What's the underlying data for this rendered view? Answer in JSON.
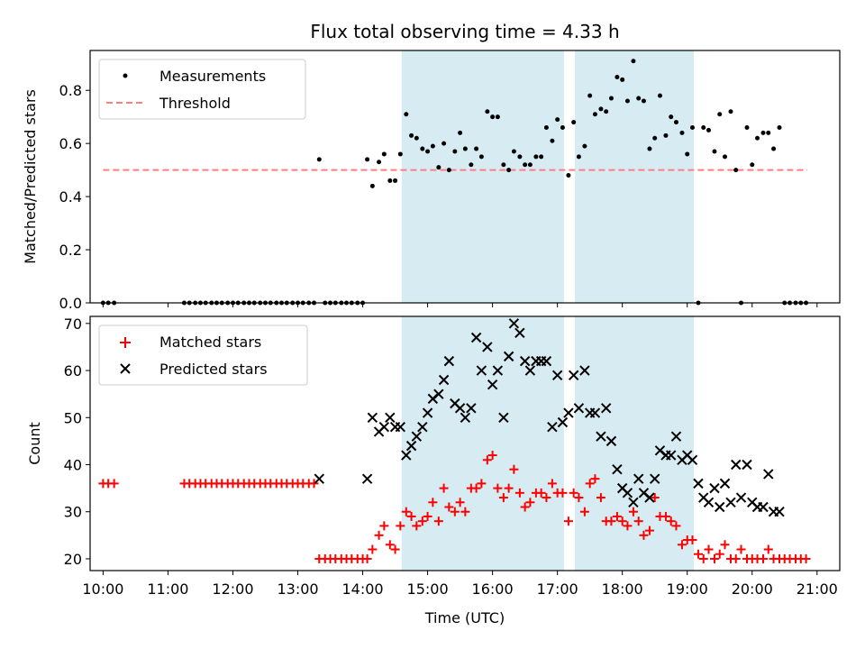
{
  "chart_data": [
    {
      "type": "scatter",
      "title": "Flux total observing time = 4.33 h",
      "xlabel": "",
      "ylabel": "Matched/Predicted stars",
      "xlim": [
        9.8,
        21.35
      ],
      "ylim": [
        0,
        0.95
      ],
      "yticks": [
        0.0,
        0.2,
        0.4,
        0.6,
        0.8
      ],
      "ytick_labels": [
        "0.0",
        "0.2",
        "0.4",
        "0.6",
        "0.8"
      ],
      "legend_position": "top-left",
      "shaded_spans": [
        [
          14.6,
          17.1
        ],
        [
          17.27,
          19.1
        ]
      ],
      "shade_color": "#add8e6",
      "series": [
        {
          "name": "Measurements",
          "marker": "dot",
          "color": "#000000",
          "x": [
            10.0,
            10.08,
            10.17,
            11.25,
            11.33,
            11.42,
            11.5,
            11.58,
            11.67,
            11.75,
            11.83,
            11.92,
            12.0,
            12.08,
            12.17,
            12.25,
            12.33,
            12.42,
            12.5,
            12.58,
            12.67,
            12.75,
            12.83,
            12.92,
            13.0,
            13.08,
            13.17,
            13.25,
            13.33,
            13.42,
            13.5,
            13.58,
            13.67,
            13.75,
            13.83,
            13.92,
            14.0,
            14.07,
            14.15,
            14.25,
            14.33,
            14.42,
            14.5,
            14.58,
            14.67,
            14.75,
            14.83,
            14.92,
            15.0,
            15.08,
            15.17,
            15.25,
            15.33,
            15.42,
            15.5,
            15.58,
            15.67,
            15.75,
            15.83,
            15.92,
            16.0,
            16.08,
            16.17,
            16.25,
            16.33,
            16.42,
            16.5,
            16.58,
            16.67,
            16.75,
            16.83,
            16.92,
            17.0,
            17.08,
            17.17,
            17.25,
            17.33,
            17.42,
            17.5,
            17.58,
            17.67,
            17.75,
            17.83,
            17.92,
            18.0,
            18.08,
            18.17,
            18.25,
            18.33,
            18.42,
            18.5,
            18.58,
            18.67,
            18.75,
            18.83,
            18.92,
            19.0,
            19.08,
            19.17,
            19.25,
            19.33,
            19.42,
            19.5,
            19.58,
            19.67,
            19.75,
            19.83,
            19.92,
            20.0,
            20.08,
            20.17,
            20.25,
            20.33,
            20.42,
            20.5,
            20.58,
            20.67,
            20.75,
            20.83
          ],
          "y": [
            0.0,
            0.0,
            0.0,
            0.0,
            0.0,
            0.0,
            0.0,
            0.0,
            0.0,
            0.0,
            0.0,
            0.0,
            0.0,
            0.0,
            0.0,
            0.0,
            0.0,
            0.0,
            0.0,
            0.0,
            0.0,
            0.0,
            0.0,
            0.0,
            0.0,
            0.0,
            0.0,
            0.0,
            0.54,
            0.0,
            0.0,
            0.0,
            0.0,
            0.0,
            0.0,
            0.0,
            0.0,
            0.54,
            0.44,
            0.53,
            0.56,
            0.46,
            0.46,
            0.56,
            0.71,
            0.63,
            0.62,
            0.58,
            0.57,
            0.59,
            0.51,
            0.6,
            0.5,
            0.57,
            0.64,
            0.58,
            0.52,
            0.58,
            0.55,
            0.72,
            0.7,
            0.7,
            0.52,
            0.5,
            0.57,
            0.55,
            0.52,
            0.52,
            0.55,
            0.55,
            0.66,
            0.61,
            0.69,
            0.66,
            0.48,
            0.68,
            0.55,
            0.59,
            0.78,
            0.71,
            0.73,
            0.72,
            0.77,
            0.85,
            0.84,
            0.76,
            0.91,
            0.77,
            0.76,
            0.58,
            0.62,
            0.78,
            0.63,
            0.7,
            0.68,
            0.64,
            0.56,
            0.66,
            0.0,
            0.66,
            0.65,
            0.57,
            0.71,
            0.55,
            0.72,
            0.5,
            0.0,
            0.66,
            0.52,
            0.62,
            0.64,
            0.64,
            0.58,
            0.66,
            0.0,
            0.0,
            0.0,
            0.0,
            0.0
          ]
        },
        {
          "name": "Threshold",
          "marker": "dashed-line",
          "color": "#ff7f7f",
          "x": [
            10.0,
            20.85
          ],
          "y": [
            0.5,
            0.5
          ]
        }
      ]
    },
    {
      "type": "scatter",
      "title": "",
      "xlabel": "Time (UTC)",
      "ylabel": "Count",
      "xlim": [
        9.8,
        21.35
      ],
      "ylim": [
        17.5,
        71.5
      ],
      "yticks": [
        20,
        30,
        40,
        50,
        60,
        70
      ],
      "ytick_labels": [
        "20",
        "30",
        "40",
        "50",
        "60",
        "70"
      ],
      "xticks": [
        10,
        11,
        12,
        13,
        14,
        15,
        16,
        17,
        18,
        19,
        20,
        21
      ],
      "xtick_labels": [
        "10:00",
        "11:00",
        "12:00",
        "13:00",
        "14:00",
        "15:00",
        "16:00",
        "17:00",
        "18:00",
        "19:00",
        "20:00",
        "21:00"
      ],
      "legend_position": "top-left",
      "shaded_spans": [
        [
          14.6,
          17.1
        ],
        [
          17.27,
          19.1
        ]
      ],
      "shade_color": "#add8e6",
      "series": [
        {
          "name": "Matched stars",
          "marker": "plus",
          "color": "#ff0000",
          "x": [
            10.0,
            10.08,
            10.17,
            11.25,
            11.33,
            11.42,
            11.5,
            11.58,
            11.67,
            11.75,
            11.83,
            11.92,
            12.0,
            12.08,
            12.17,
            12.25,
            12.33,
            12.42,
            12.5,
            12.58,
            12.67,
            12.75,
            12.83,
            12.92,
            13.0,
            13.08,
            13.17,
            13.25,
            13.33,
            13.42,
            13.5,
            13.58,
            13.67,
            13.75,
            13.83,
            13.92,
            14.0,
            14.07,
            14.15,
            14.25,
            14.33,
            14.42,
            14.5,
            14.58,
            14.67,
            14.75,
            14.83,
            14.92,
            15.0,
            15.08,
            15.17,
            15.25,
            15.33,
            15.42,
            15.5,
            15.58,
            15.67,
            15.75,
            15.83,
            15.92,
            16.0,
            16.08,
            16.17,
            16.25,
            16.33,
            16.42,
            16.5,
            16.58,
            16.67,
            16.75,
            16.83,
            16.92,
            17.0,
            17.08,
            17.17,
            17.25,
            17.33,
            17.42,
            17.5,
            17.58,
            17.67,
            17.75,
            17.83,
            17.92,
            18.0,
            18.08,
            18.17,
            18.25,
            18.33,
            18.42,
            18.5,
            18.58,
            18.67,
            18.75,
            18.83,
            18.92,
            19.0,
            19.08,
            19.17,
            19.25,
            19.33,
            19.42,
            19.5,
            19.58,
            19.67,
            19.75,
            19.83,
            19.92,
            20.0,
            20.08,
            20.17,
            20.25,
            20.33,
            20.42,
            20.5,
            20.58,
            20.67,
            20.75,
            20.83
          ],
          "y": [
            36,
            36,
            36,
            36,
            36,
            36,
            36,
            36,
            36,
            36,
            36,
            36,
            36,
            36,
            36,
            36,
            36,
            36,
            36,
            36,
            36,
            36,
            36,
            36,
            36,
            36,
            36,
            36,
            20,
            20,
            20,
            20,
            20,
            20,
            20,
            20,
            20,
            20,
            22,
            25,
            27,
            23,
            22,
            27,
            30,
            29,
            27,
            28,
            29,
            32,
            28,
            35,
            31,
            30,
            32,
            30,
            35,
            35,
            36,
            41,
            42,
            35,
            33,
            35,
            39,
            34,
            31,
            32,
            34,
            34,
            33,
            36,
            34,
            34,
            28,
            34,
            33,
            30,
            36,
            37,
            33,
            28,
            28,
            29,
            28,
            27,
            30,
            28,
            25,
            26,
            33,
            29,
            29,
            28,
            27,
            23,
            24,
            24,
            21,
            20,
            22,
            20,
            21,
            23,
            20,
            20,
            22,
            20,
            20,
            20,
            20,
            22,
            20,
            20,
            20,
            20,
            20,
            20,
            20
          ],
          "pair_count": 119
        },
        {
          "name": "Predicted stars",
          "marker": "x",
          "color": "#000000",
          "x": [
            13.33,
            14.07,
            14.15,
            14.25,
            14.33,
            14.42,
            14.5,
            14.58,
            14.67,
            14.75,
            14.83,
            14.92,
            15.0,
            15.08,
            15.17,
            15.25,
            15.33,
            15.42,
            15.5,
            15.58,
            15.67,
            15.75,
            15.83,
            15.92,
            16.0,
            16.08,
            16.17,
            16.25,
            16.33,
            16.42,
            16.5,
            16.58,
            16.67,
            16.75,
            16.83,
            16.92,
            17.0,
            17.08,
            17.17,
            17.25,
            17.33,
            17.42,
            17.5,
            17.58,
            17.67,
            17.75,
            17.83,
            17.92,
            18.0,
            18.08,
            18.17,
            18.25,
            18.33,
            18.42,
            18.5,
            18.58,
            18.67,
            18.75,
            18.83,
            18.92,
            19.0,
            19.08,
            19.17,
            19.25,
            19.33,
            19.42,
            19.5,
            19.58,
            19.67,
            19.75,
            19.83,
            19.92,
            20.0,
            20.08,
            20.17,
            20.25,
            20.33,
            20.42
          ],
          "y": [
            37,
            37,
            50,
            47,
            48,
            50,
            48,
            48,
            42,
            44,
            46,
            48,
            51,
            54,
            55,
            58,
            62,
            53,
            52,
            50,
            52,
            67,
            60,
            65,
            57,
            60,
            50,
            63,
            70,
            68,
            62,
            60,
            62,
            62,
            62,
            48,
            59,
            49,
            51,
            59,
            52,
            60,
            51,
            51,
            46,
            52,
            45,
            39,
            35,
            34,
            32,
            37,
            34,
            33,
            37,
            43,
            42,
            42,
            46,
            41,
            42,
            41,
            36,
            33,
            32,
            35,
            31,
            36,
            32,
            40,
            33,
            40,
            32,
            31,
            31,
            38,
            30,
            30
          ],
          "pair_count": 78
        }
      ]
    }
  ]
}
